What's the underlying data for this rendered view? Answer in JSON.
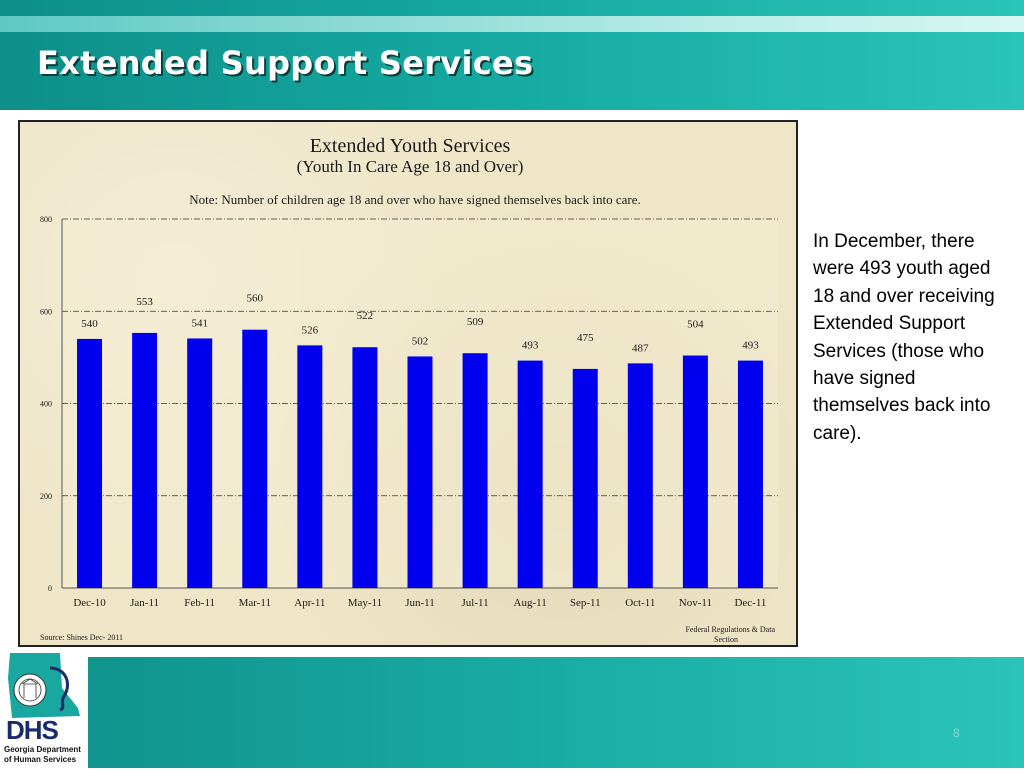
{
  "slide": {
    "title": "Extended Support Services",
    "page_number": "8",
    "side_text": "In December, there were 493 youth aged 18 and over receiving Extended Support Services (those who have signed themselves back into care)."
  },
  "logo": {
    "acronym": "DHS",
    "name": "Georgia Department of Human Services"
  },
  "colors": {
    "bar": "#0000ee",
    "band": "#14a8a0",
    "chart_bg": "#efe6c8"
  },
  "chart_data": {
    "type": "bar",
    "title": "Extended Youth Services",
    "subtitle": "(Youth In Care Age 18 and Over)",
    "note": "Note: Number of children age 18 and over who have signed themselves back into care.",
    "source": "Source: Shines   Dec- 2011",
    "credit": "Federal Regulations  & Data Section",
    "categories": [
      "Dec-10",
      "Jan-11",
      "Feb-11",
      "Mar-11",
      "Apr-11",
      "May-11",
      "Jun-11",
      "Jul-11",
      "Aug-11",
      "Sep-11",
      "Oct-11",
      "Nov-11",
      "Dec-11"
    ],
    "values": [
      540,
      553,
      541,
      560,
      526,
      522,
      502,
      509,
      493,
      475,
      487,
      504,
      493
    ],
    "ylim": [
      0,
      800
    ],
    "yticks": [
      0,
      200,
      400,
      600,
      800
    ],
    "grid": true,
    "legend": "none"
  }
}
